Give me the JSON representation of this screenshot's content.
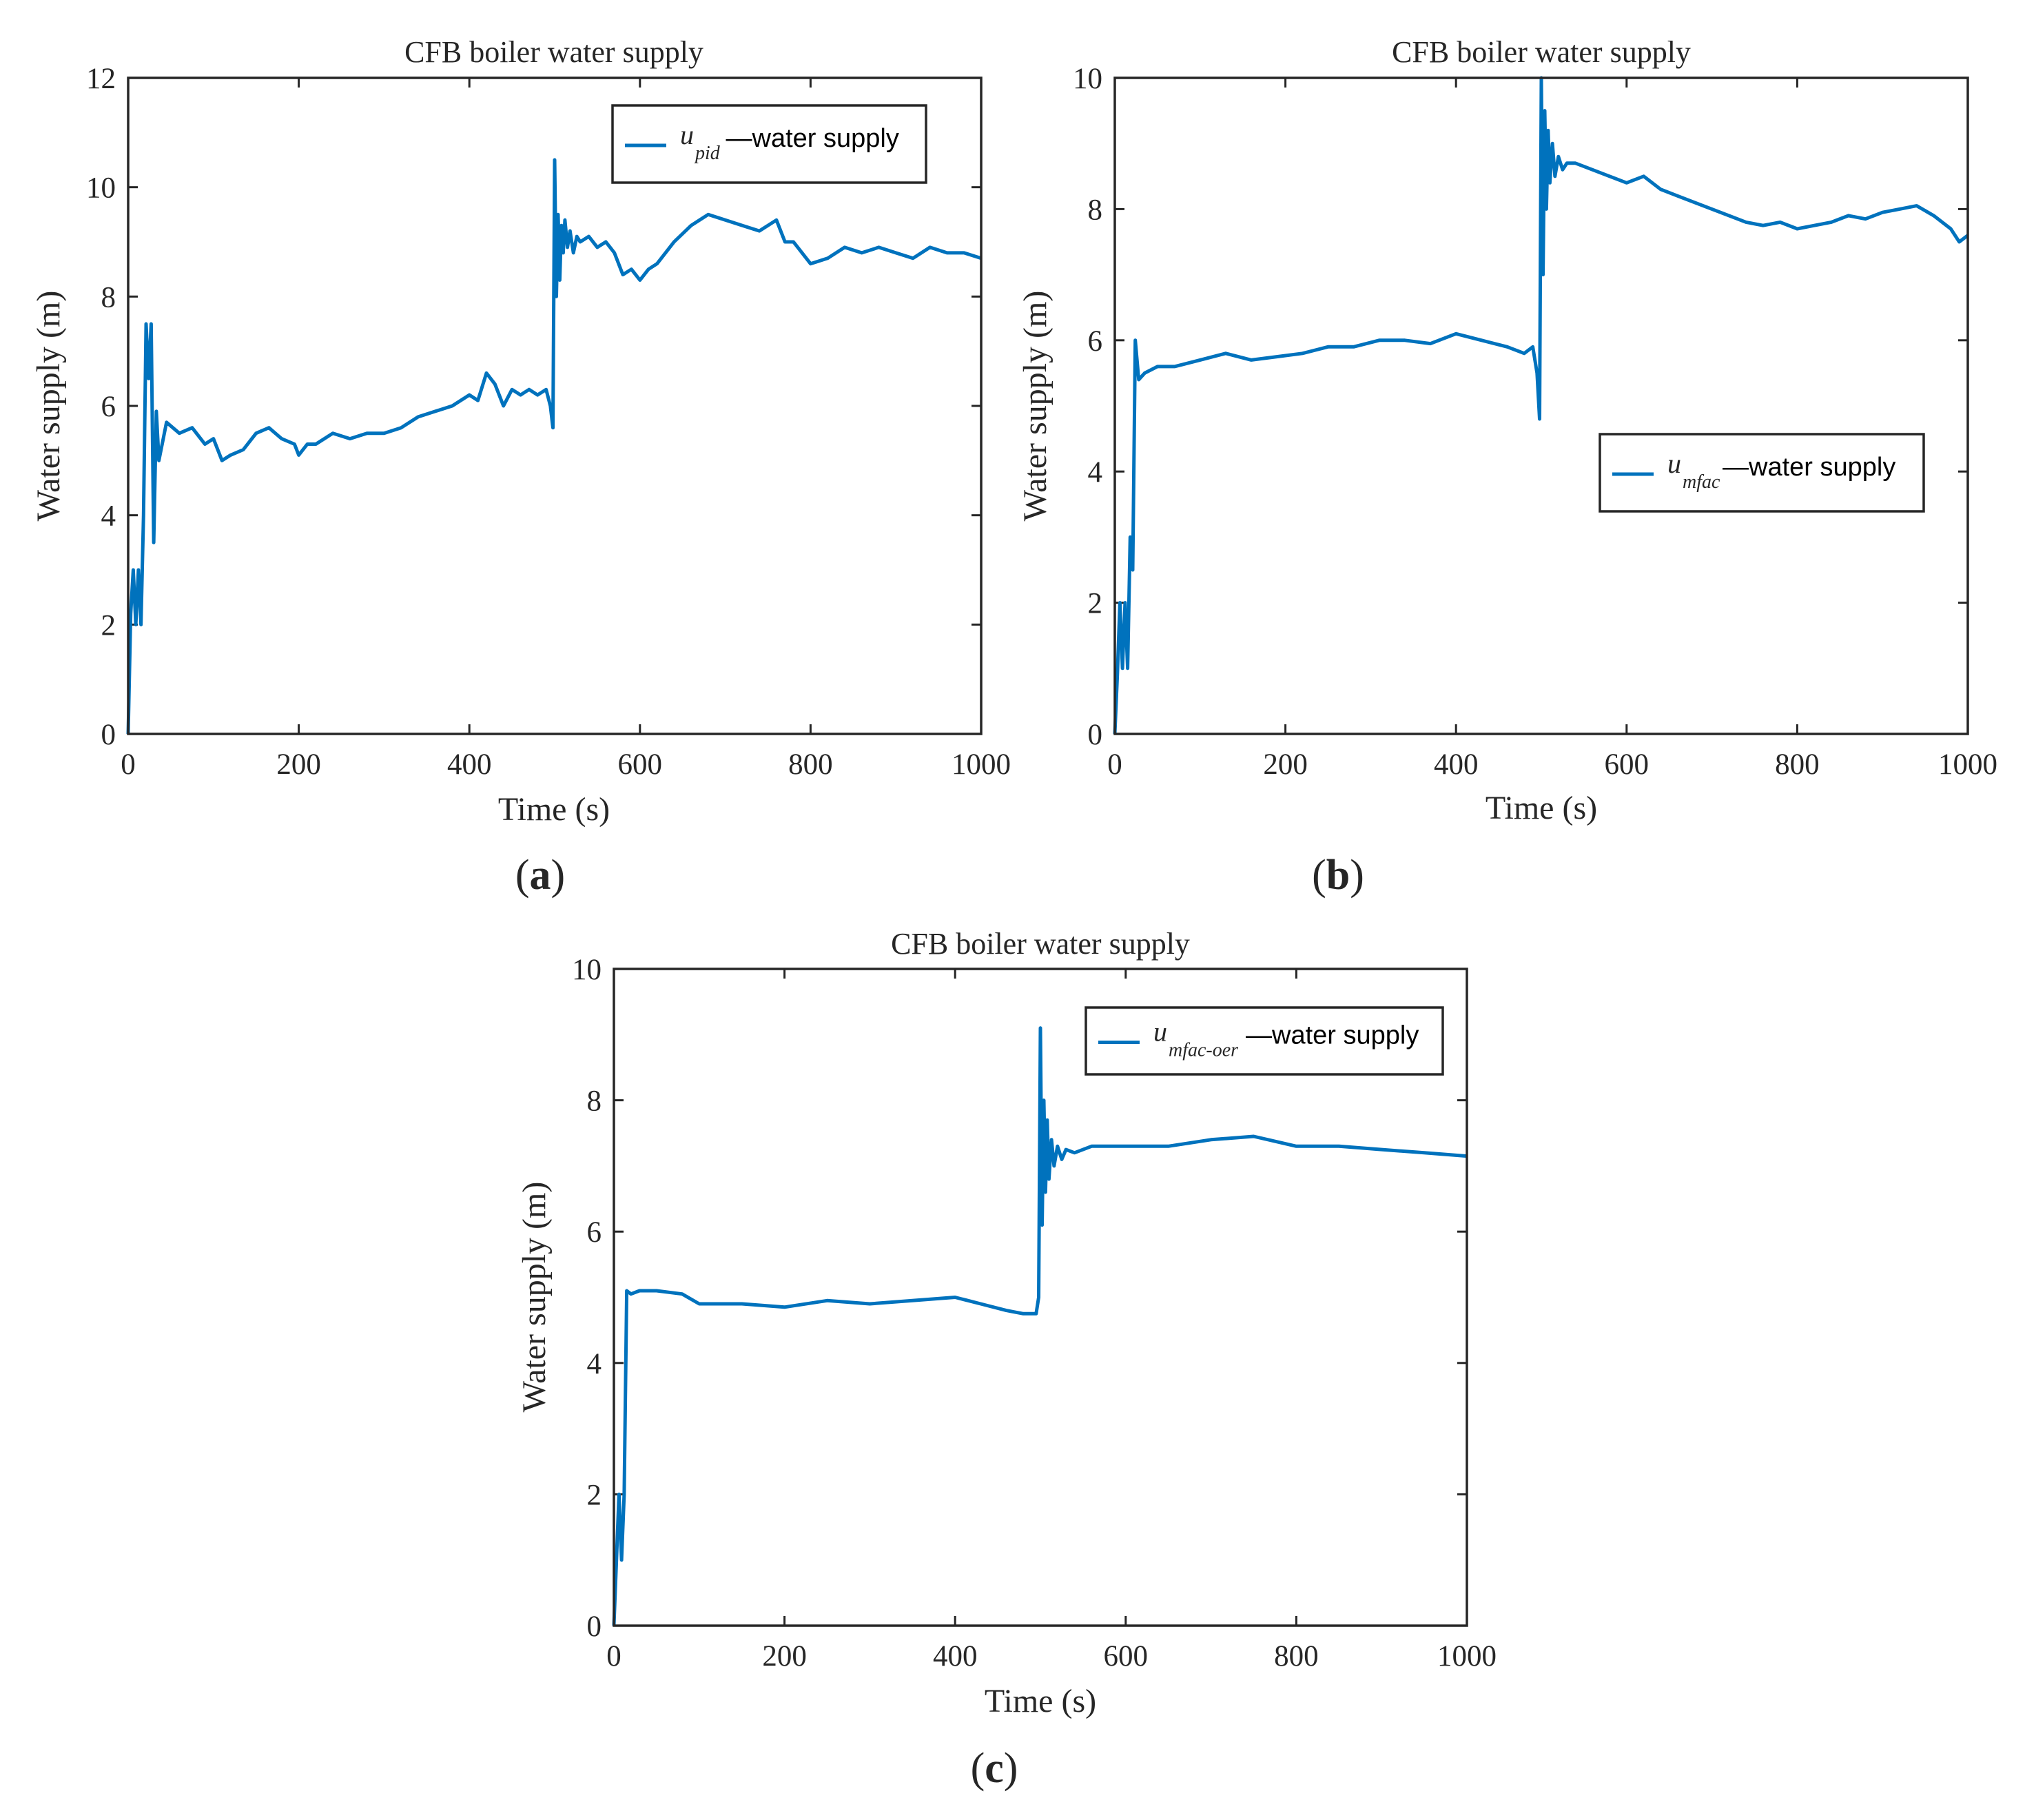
{
  "chart_data": [
    {
      "panel": "(a)",
      "panel_letter": "a",
      "type": "line",
      "title": "CFB boiler water supply",
      "xlabel": "Time  (s)",
      "ylabel": "Water supply  (m)",
      "xlim": [
        0,
        1000
      ],
      "ylim": [
        0,
        12
      ],
      "xticks": [
        0,
        200,
        400,
        600,
        800,
        1000
      ],
      "yticks": [
        0,
        2,
        4,
        6,
        8,
        10,
        12
      ],
      "legend_position": "top-right",
      "series": [
        {
          "name": "u_pid—water supply",
          "legend_symbol": "u",
          "legend_subscript": "pid",
          "legend_text": "—water supply",
          "color": "#0072BD",
          "x": [
            0,
            3,
            6,
            9,
            12,
            15,
            18,
            21,
            24,
            27,
            30,
            33,
            36,
            45,
            60,
            75,
            90,
            100,
            110,
            120,
            135,
            150,
            165,
            180,
            195,
            200,
            210,
            220,
            240,
            260,
            280,
            300,
            320,
            340,
            360,
            380,
            400,
            410,
            420,
            430,
            440,
            450,
            460,
            470,
            480,
            490,
            495,
            498,
            500,
            502,
            504,
            506,
            508,
            510,
            512,
            515,
            518,
            522,
            526,
            530,
            540,
            550,
            560,
            570,
            580,
            590,
            600,
            610,
            620,
            640,
            660,
            680,
            700,
            720,
            740,
            760,
            770,
            780,
            800,
            820,
            840,
            860,
            880,
            900,
            920,
            940,
            960,
            980,
            1000
          ],
          "y": [
            0,
            2.2,
            3.0,
            2.0,
            3.0,
            2.0,
            4.0,
            7.5,
            6.5,
            7.5,
            3.5,
            5.9,
            5.0,
            5.7,
            5.5,
            5.6,
            5.3,
            5.4,
            5.0,
            5.1,
            5.2,
            5.5,
            5.6,
            5.4,
            5.3,
            5.1,
            5.3,
            5.3,
            5.5,
            5.4,
            5.5,
            5.5,
            5.6,
            5.8,
            5.9,
            6.0,
            6.2,
            6.1,
            6.6,
            6.4,
            6.0,
            6.3,
            6.2,
            6.3,
            6.2,
            6.3,
            6.0,
            5.6,
            10.5,
            8.0,
            9.5,
            8.3,
            9.3,
            8.8,
            9.4,
            8.9,
            9.2,
            8.8,
            9.1,
            9.0,
            9.1,
            8.9,
            9.0,
            8.8,
            8.4,
            8.5,
            8.3,
            8.5,
            8.6,
            9.0,
            9.3,
            9.5,
            9.4,
            9.3,
            9.2,
            9.4,
            9.0,
            9.0,
            8.6,
            8.7,
            8.9,
            8.8,
            8.9,
            8.8,
            8.7,
            8.9,
            8.8,
            8.8,
            8.7
          ]
        }
      ]
    },
    {
      "panel": "(b)",
      "panel_letter": "b",
      "type": "line",
      "title": "CFB boiler water supply",
      "xlabel": "Time  (s)",
      "ylabel": "Water supply  (m)",
      "xlim": [
        0,
        1000
      ],
      "ylim": [
        0,
        10
      ],
      "xticks": [
        0,
        200,
        400,
        600,
        800,
        1000
      ],
      "yticks": [
        0,
        2,
        4,
        6,
        8,
        10
      ],
      "legend_position": "right",
      "series": [
        {
          "name": "u_mfac—water supply",
          "legend_symbol": "u",
          "legend_subscript": "mfac",
          "legend_text": "—water supply",
          "color": "#0072BD",
          "x": [
            0,
            3,
            6,
            9,
            12,
            15,
            18,
            21,
            24,
            28,
            35,
            50,
            70,
            100,
            130,
            160,
            190,
            220,
            250,
            280,
            310,
            340,
            370,
            400,
            430,
            460,
            480,
            490,
            495,
            498,
            500,
            502,
            504,
            506,
            508,
            510,
            513,
            516,
            520,
            525,
            530,
            540,
            560,
            580,
            600,
            620,
            640,
            660,
            680,
            700,
            720,
            740,
            760,
            780,
            800,
            820,
            840,
            860,
            880,
            900,
            920,
            940,
            960,
            980,
            990,
            1000
          ],
          "y": [
            0,
            0.9,
            2.0,
            1.0,
            2.0,
            1.0,
            3.0,
            2.5,
            6.0,
            5.4,
            5.5,
            5.6,
            5.6,
            5.7,
            5.8,
            5.7,
            5.75,
            5.8,
            5.9,
            5.9,
            6.0,
            6.0,
            5.95,
            6.1,
            6.0,
            5.9,
            5.8,
            5.9,
            5.5,
            4.8,
            10.0,
            7.0,
            9.5,
            8.0,
            9.2,
            8.4,
            9.0,
            8.5,
            8.8,
            8.6,
            8.7,
            8.7,
            8.6,
            8.5,
            8.4,
            8.5,
            8.3,
            8.2,
            8.1,
            8.0,
            7.9,
            7.8,
            7.75,
            7.8,
            7.7,
            7.75,
            7.8,
            7.9,
            7.85,
            7.95,
            8.0,
            8.05,
            7.9,
            7.7,
            7.5,
            7.6
          ]
        }
      ]
    },
    {
      "panel": "(c)",
      "panel_letter": "c",
      "type": "line",
      "title": "CFB boiler water supply",
      "xlabel": "Time  (s)",
      "ylabel": "Water supply  (m)",
      "xlim": [
        0,
        1000
      ],
      "ylim": [
        0,
        10
      ],
      "xticks": [
        0,
        200,
        400,
        600,
        800,
        1000
      ],
      "yticks": [
        0,
        2,
        4,
        6,
        8,
        10
      ],
      "legend_position": "top-right",
      "series": [
        {
          "name": "u_mfac-oer—water supply",
          "legend_symbol": "u",
          "legend_subscript": "mfac-oer",
          "legend_text": "—water supply",
          "color": "#0072BD",
          "x": [
            0,
            3,
            6,
            9,
            12,
            15,
            20,
            30,
            50,
            80,
            100,
            150,
            200,
            250,
            300,
            350,
            400,
            430,
            460,
            480,
            495,
            498,
            500,
            502,
            504,
            506,
            508,
            510,
            513,
            516,
            520,
            525,
            530,
            540,
            560,
            600,
            650,
            700,
            750,
            800,
            850,
            900,
            950,
            1000
          ],
          "y": [
            0,
            1.0,
            2.0,
            1.0,
            2.0,
            5.1,
            5.05,
            5.1,
            5.1,
            5.05,
            4.9,
            4.9,
            4.85,
            4.95,
            4.9,
            4.95,
            5.0,
            4.9,
            4.8,
            4.75,
            4.75,
            5.0,
            9.1,
            6.1,
            8.0,
            6.6,
            7.7,
            6.8,
            7.4,
            7.0,
            7.3,
            7.1,
            7.25,
            7.2,
            7.3,
            7.3,
            7.3,
            7.4,
            7.45,
            7.3,
            7.3,
            7.25,
            7.2,
            7.15
          ]
        }
      ]
    }
  ]
}
